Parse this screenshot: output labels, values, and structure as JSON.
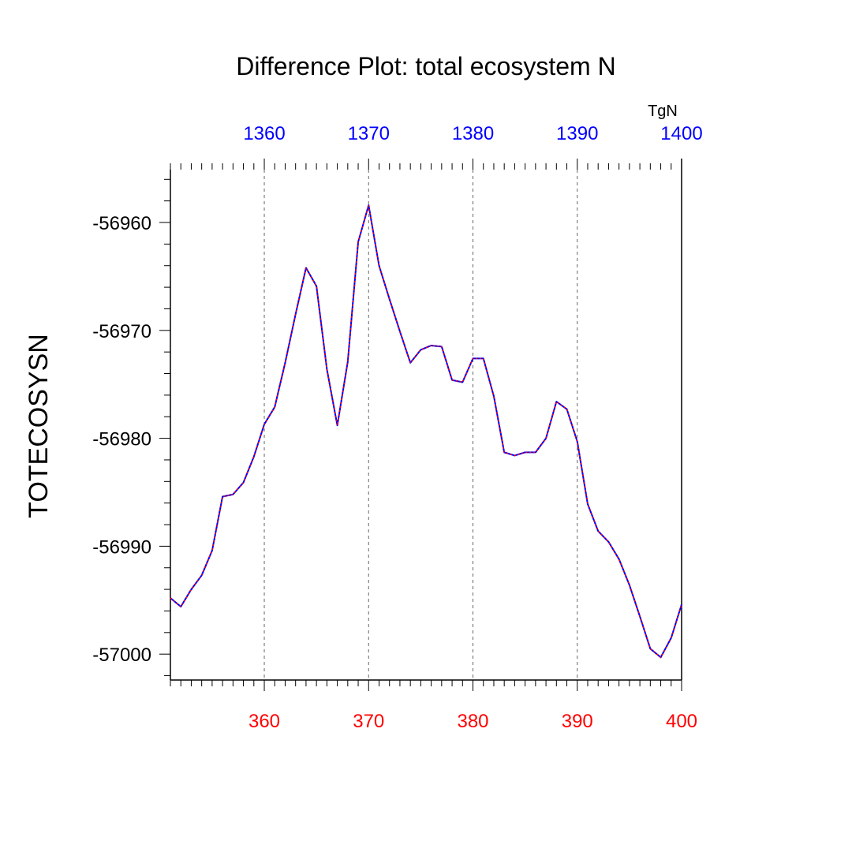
{
  "chart_data": {
    "type": "line",
    "title": "Difference Plot: total ecosystem N",
    "ylabel": "TOTECOSYSN",
    "units_label": "TgN",
    "xlim_bottom": [
      351,
      400
    ],
    "xlim_top": [
      1351,
      1400
    ],
    "ylim": [
      -57002.4,
      -56955.1
    ],
    "grid": "vertical-dashed",
    "bottom_axis_color": "#ff0000",
    "top_axis_color": "#0000ff",
    "series_colors": {
      "primary": "#0000ff",
      "overlay": "#ff0000"
    },
    "xticks_bottom": [
      360,
      370,
      380,
      390,
      400
    ],
    "xticks_top": [
      1360,
      1370,
      1380,
      1390,
      1400
    ],
    "yticks": [
      -56960,
      -56970,
      -56980,
      -56990,
      -57000
    ],
    "x": [
      351,
      352,
      353,
      354,
      355,
      356,
      357,
      358,
      359,
      360,
      361,
      362,
      363,
      364,
      365,
      366,
      367,
      368,
      369,
      370,
      371,
      372,
      373,
      374,
      375,
      376,
      377,
      378,
      379,
      380,
      381,
      382,
      383,
      384,
      385,
      386,
      387,
      388,
      389,
      390,
      391,
      392,
      393,
      394,
      395,
      396,
      397,
      398,
      399,
      400
    ],
    "series": [
      {
        "values": [
          -56994.8,
          -56995.6,
          -56994.0,
          -56992.7,
          -56990.4,
          -56985.4,
          -56985.2,
          -56984.1,
          -56981.7,
          -56978.7,
          -56977.1,
          -56973.0,
          -56968.5,
          -56964.2,
          -56965.9,
          -56973.6,
          -56978.8,
          -56972.9,
          -56961.8,
          -56958.4,
          -56964.0,
          -56967.1,
          -56970.1,
          -56973.0,
          -56971.8,
          -56971.4,
          -56971.5,
          -56974.6,
          -56974.8,
          -56972.6,
          -56972.6,
          -56976.1,
          -56981.3,
          -56981.6,
          -56981.3,
          -56981.3,
          -56980.0,
          -56976.6,
          -56977.3,
          -56980.3,
          -56986.1,
          -56988.6,
          -56989.6,
          -56991.2,
          -56993.6,
          -56996.5,
          -56999.5,
          -57000.3,
          -56998.5,
          -56995.4
        ]
      }
    ]
  }
}
